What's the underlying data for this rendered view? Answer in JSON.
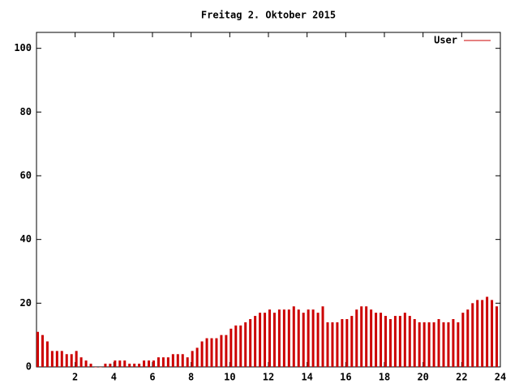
{
  "chart_data": {
    "type": "impulse",
    "title": "Freitag 2. Oktober 2015",
    "x": [
      0,
      0.25,
      0.5,
      0.75,
      1,
      1.25,
      1.5,
      1.75,
      2,
      2.25,
      2.5,
      2.75,
      3,
      3.25,
      3.5,
      3.75,
      4,
      4.25,
      4.5,
      4.75,
      5,
      5.25,
      5.5,
      5.75,
      6,
      6.25,
      6.5,
      6.75,
      7,
      7.25,
      7.5,
      7.75,
      8,
      8.25,
      8.5,
      8.75,
      9,
      9.25,
      9.5,
      9.75,
      10,
      10.25,
      10.5,
      10.75,
      11,
      11.25,
      11.5,
      11.75,
      12,
      12.25,
      12.5,
      12.75,
      13,
      13.25,
      13.5,
      13.75,
      14,
      14.25,
      14.5,
      14.75,
      15,
      15.25,
      15.5,
      15.75,
      16,
      16.25,
      16.5,
      16.75,
      17,
      17.25,
      17.5,
      17.75,
      18,
      18.25,
      18.5,
      18.75,
      19,
      19.25,
      19.5,
      19.75,
      20,
      20.25,
      20.5,
      20.75,
      21,
      21.25,
      21.5,
      21.75,
      22,
      22.25,
      22.5,
      22.75,
      23,
      23.25,
      23.5,
      23.75
    ],
    "series": [
      {
        "name": "User",
        "color": "#cc0000",
        "values": [
          11,
          10,
          8,
          5,
          5,
          5,
          4,
          4,
          5,
          3,
          2,
          1,
          0,
          0,
          1,
          1,
          2,
          2,
          2,
          1,
          1,
          1,
          2,
          2,
          2,
          3,
          3,
          3,
          4,
          4,
          4,
          3,
          5,
          6,
          8,
          9,
          9,
          9,
          10,
          10,
          12,
          13,
          13,
          14,
          15,
          16,
          17,
          17,
          18,
          17,
          18,
          18,
          18,
          19,
          18,
          17,
          18,
          18,
          17,
          19,
          14,
          14,
          14,
          15,
          15,
          16,
          18,
          19,
          19,
          18,
          17,
          17,
          16,
          15,
          16,
          16,
          17,
          16,
          15,
          14,
          14,
          14,
          14,
          15,
          14,
          14,
          15,
          14,
          17,
          18,
          20,
          21,
          21,
          22,
          21,
          19
        ]
      }
    ],
    "xlim": [
      0,
      24
    ],
    "xticks": [
      2,
      4,
      6,
      8,
      10,
      12,
      14,
      16,
      18,
      20,
      22,
      24
    ],
    "ylim": [
      0,
      105
    ],
    "yticks": [
      0,
      20,
      40,
      60,
      80,
      100
    ],
    "legend": "top-right"
  }
}
